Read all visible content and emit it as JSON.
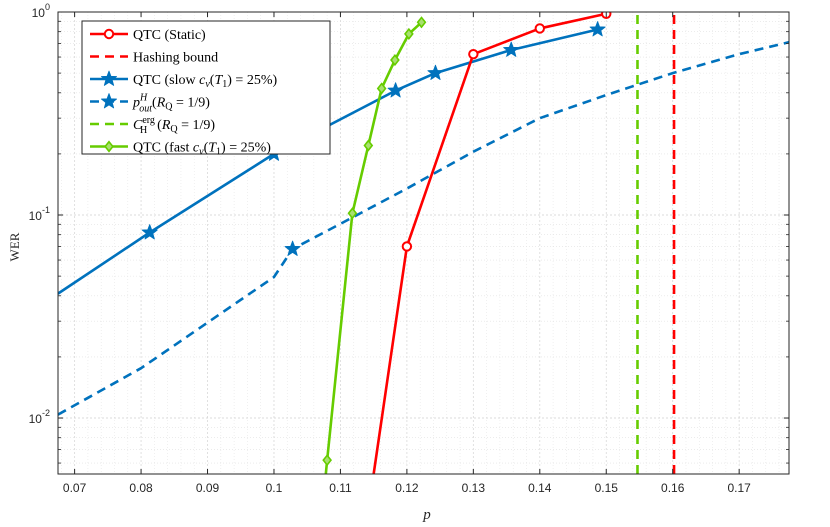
{
  "chart_data": {
    "type": "line",
    "xlabel": "p",
    "ylabel": "WER",
    "xlim": [
      0.0675,
      0.1775
    ],
    "ylim": [
      0.0053,
      1.0
    ],
    "yscale": "log",
    "grid": true,
    "minor_grid": true,
    "legend_position": "top-left",
    "xticks": [
      0.07,
      0.08,
      0.09,
      0.1,
      0.11,
      0.12,
      0.13,
      0.14,
      0.15,
      0.16,
      0.17
    ],
    "xtick_labels": [
      "0.07",
      "0.08",
      "0.09",
      "0.1",
      "0.11",
      "0.12",
      "0.13",
      "0.14",
      "0.15",
      "0.16",
      "0.17"
    ],
    "yticks": [
      0.01,
      0.1,
      1
    ],
    "ytick_labels": [
      {
        "base": "10",
        "exp": "-2"
      },
      {
        "base": "10",
        "exp": "-1"
      },
      {
        "base": "10",
        "exp": "0"
      }
    ],
    "series": [
      {
        "key": "qtc-static",
        "name": "QTC (Static)",
        "color": "#ff0000",
        "style": "solid",
        "marker": "circle",
        "x": [
          0.115,
          0.12,
          0.13,
          0.14,
          0.15
        ],
        "y": [
          0.0053,
          0.07,
          0.62,
          0.83,
          0.98
        ],
        "marker_x": [
          0.12,
          0.13,
          0.14,
          0.15
        ],
        "marker_y": [
          0.07,
          0.62,
          0.83,
          0.98
        ]
      },
      {
        "key": "hashing-bound",
        "name": "Hashing bound",
        "color": "#ff0000",
        "style": "dashed",
        "marker": "none",
        "x": [
          0.1602,
          0.1602
        ],
        "y": [
          0.0053,
          1.0
        ]
      },
      {
        "key": "qtc-slow",
        "name": "QTC (slow cv(T1) = 25%)",
        "color": "#0072bd",
        "style": "solid",
        "marker": "star",
        "x": [
          0.0675,
          0.0813,
          0.1,
          0.1183,
          0.1243,
          0.1357,
          0.1487
        ],
        "y": [
          0.041,
          0.082,
          0.2,
          0.41,
          0.5,
          0.65,
          0.82
        ],
        "marker_x": [
          0.0813,
          0.1,
          0.1183,
          0.1243,
          0.1357,
          0.1487
        ],
        "marker_y": [
          0.082,
          0.2,
          0.41,
          0.5,
          0.65,
          0.82
        ]
      },
      {
        "key": "p-out",
        "name": "pHout(RQ = 1/9)",
        "color": "#0072bd",
        "style": "dashed",
        "marker": "star",
        "x": [
          0.0675,
          0.08,
          0.09,
          0.1,
          0.1028,
          0.11,
          0.12,
          0.13,
          0.14,
          0.15,
          0.16,
          0.17,
          0.1775
        ],
        "y": [
          0.0104,
          0.0176,
          0.0295,
          0.0495,
          0.068,
          0.0905,
          0.135,
          0.205,
          0.3,
          0.39,
          0.5,
          0.62,
          0.71
        ],
        "marker_x": [
          0.1028
        ],
        "marker_y": [
          0.068
        ]
      },
      {
        "key": "c-erg",
        "name": "CergH (RQ = 1/9)",
        "color": "#66cc00",
        "style": "dashed",
        "marker": "none",
        "x": [
          0.1547,
          0.1547
        ],
        "y": [
          0.0053,
          1.0
        ]
      },
      {
        "key": "qtc-fast",
        "name": "QTC (fast cv(T1) = 25%)",
        "color": "#66cc00",
        "style": "solid",
        "marker": "diamond",
        "x": [
          0.1078,
          0.108,
          0.1118,
          0.1142,
          0.1162,
          0.1182,
          0.1203,
          0.1222
        ],
        "y": [
          0.0053,
          0.0062,
          0.102,
          0.22,
          0.42,
          0.58,
          0.78,
          0.89
        ],
        "marker_x": [
          0.108,
          0.1118,
          0.1142,
          0.1162,
          0.1182,
          0.1203,
          0.1222
        ],
        "marker_y": [
          0.0062,
          0.102,
          0.22,
          0.42,
          0.58,
          0.78,
          0.89
        ]
      }
    ]
  }
}
